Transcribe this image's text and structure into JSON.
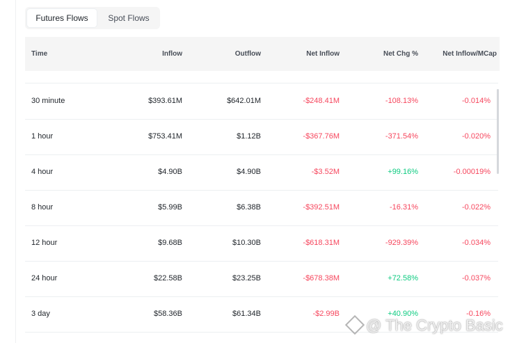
{
  "tabs": [
    {
      "label": "Futures Flows",
      "active": true
    },
    {
      "label": "Spot Flows",
      "active": false
    }
  ],
  "table": {
    "headers": {
      "time": "Time",
      "inflow": "Inflow",
      "outflow": "Outflow",
      "net_inflow": "Net Inflow",
      "net_chg": "Net Chg %",
      "net_mcap": "Net Inflow/MCap"
    },
    "rows": [
      {
        "time": "30 minute",
        "inflow": "$393.61M",
        "outflow": "$642.01M",
        "net_inflow": "-$248.41M",
        "net_chg": "-108.13%",
        "net_mcap": "-0.014%"
      },
      {
        "time": "1 hour",
        "inflow": "$753.41M",
        "outflow": "$1.12B",
        "net_inflow": "-$367.76M",
        "net_chg": "-371.54%",
        "net_mcap": "-0.020%"
      },
      {
        "time": "4 hour",
        "inflow": "$4.90B",
        "outflow": "$4.90B",
        "net_inflow": "-$3.52M",
        "net_chg": "+99.16%",
        "net_mcap": "-0.00019%"
      },
      {
        "time": "8 hour",
        "inflow": "$5.99B",
        "outflow": "$6.38B",
        "net_inflow": "-$392.51M",
        "net_chg": "-16.31%",
        "net_mcap": "-0.022%"
      },
      {
        "time": "12 hour",
        "inflow": "$9.68B",
        "outflow": "$10.30B",
        "net_inflow": "-$618.31M",
        "net_chg": "-929.39%",
        "net_mcap": "-0.034%"
      },
      {
        "time": "24 hour",
        "inflow": "$22.58B",
        "outflow": "$23.25B",
        "net_inflow": "-$678.38M",
        "net_chg": "+72.58%",
        "net_mcap": "-0.037%"
      },
      {
        "time": "3 day",
        "inflow": "$58.36B",
        "outflow": "$61.34B",
        "net_inflow": "-$2.99B",
        "net_chg": "+40.90%",
        "net_mcap": "-0.16%"
      }
    ]
  },
  "watermark": {
    "text": "@ The Crypto Basic"
  },
  "colors": {
    "negative": "#f6465d",
    "positive": "#0ecb81"
  }
}
